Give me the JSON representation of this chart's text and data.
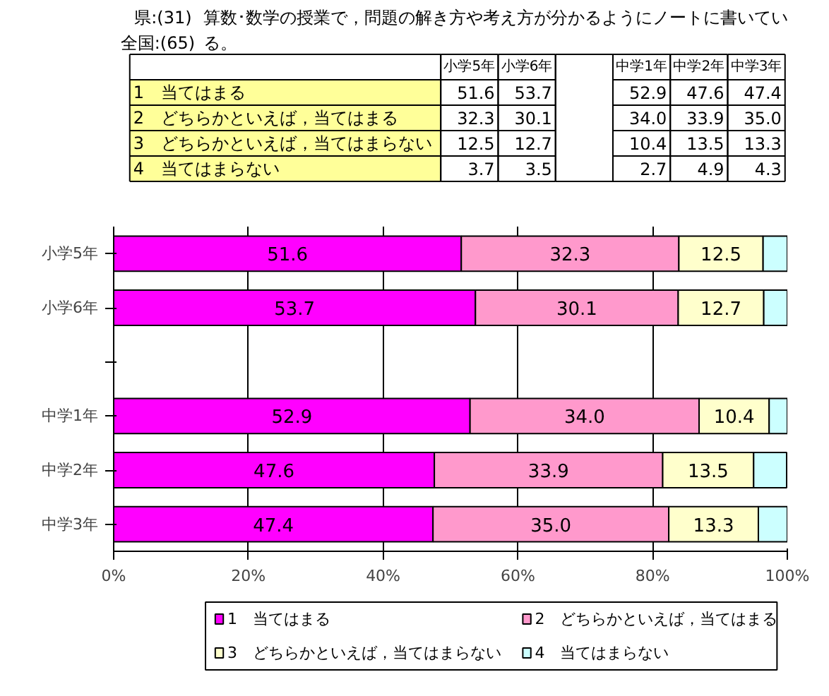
{
  "chart_data": [
    {
      "type": "other",
      "title": "算数･数学の授業で，問題の解き方や考え方が分かるようにノートに書いている。",
      "annotations": [
        "県:(31)",
        "全国:(65)"
      ],
      "categories": [
        "小学5年",
        "小学6年",
        null,
        "中学1年",
        "中学2年",
        "中学3年"
      ],
      "series": [
        {
          "name": "1　当てはまる",
          "values": [
            51.6,
            53.7,
            null,
            52.9,
            47.6,
            47.4
          ],
          "value_labels": [
            "51.6",
            "53.7",
            null,
            "52.9",
            "47.6",
            "47.4"
          ]
        },
        {
          "name": "2　どちらかといえば，当てはまる",
          "values": [
            32.3,
            30.1,
            null,
            34.0,
            33.9,
            35.0
          ],
          "value_labels": [
            "32.3",
            "30.1",
            null,
            "34.0",
            "33.9",
            "35.0"
          ]
        },
        {
          "name": "3　どちらかといえば，当てはまらない",
          "values": [
            12.5,
            12.7,
            null,
            10.4,
            13.5,
            13.3
          ],
          "value_labels": [
            "12.5",
            "12.7",
            null,
            "10.4",
            "13.5",
            "13.3"
          ]
        },
        {
          "name": "4　当てはまらない",
          "values": [
            3.7,
            3.5,
            null,
            2.7,
            4.9,
            4.3
          ],
          "value_labels": [
            "3.7",
            "3.5",
            null,
            "2.7",
            "4.9",
            "4.3"
          ]
        }
      ]
    },
    {
      "type": "bar",
      "orientation": "horizontal",
      "stacked": true,
      "categories": [
        "小学5年",
        "小学6年",
        null,
        "中学1年",
        "中学2年",
        "中学3年"
      ],
      "series": [
        {
          "name": "1　当てはまる",
          "color": "#ff00ff",
          "values": [
            51.6,
            53.7,
            null,
            52.9,
            47.6,
            47.4
          ],
          "value_labels": [
            "51.6",
            "53.7",
            null,
            "52.9",
            "47.6",
            "47.4"
          ]
        },
        {
          "name": "2　どちらかといえば，当てはまる",
          "color": "#ff99cc",
          "values": [
            32.3,
            30.1,
            null,
            34.0,
            33.9,
            35.0
          ],
          "value_labels": [
            "32.3",
            "30.1",
            null,
            "34.0",
            "33.9",
            "35.0"
          ]
        },
        {
          "name": "3　どちらかといえば，当てはまらない",
          "color": "#ffffcc",
          "values": [
            12.5,
            12.7,
            null,
            10.4,
            13.5,
            13.3
          ],
          "value_labels": [
            "12.5",
            "12.7",
            null,
            "10.4",
            "13.5",
            "13.3"
          ]
        },
        {
          "name": "4　当てはまらない",
          "color": "#ccffff",
          "values": [
            3.7,
            3.5,
            null,
            2.7,
            4.9,
            4.3
          ]
        }
      ],
      "xlim": [
        0,
        100
      ],
      "xticks": [
        {
          "value": 0,
          "label": "0%"
        },
        {
          "value": 20,
          "label": "20%"
        },
        {
          "value": 40,
          "label": "40%"
        },
        {
          "value": 60,
          "label": "60%"
        },
        {
          "value": 80,
          "label": "80%"
        },
        {
          "value": 100,
          "label": "100%"
        }
      ],
      "grid": "x",
      "legend": "bottom"
    }
  ]
}
